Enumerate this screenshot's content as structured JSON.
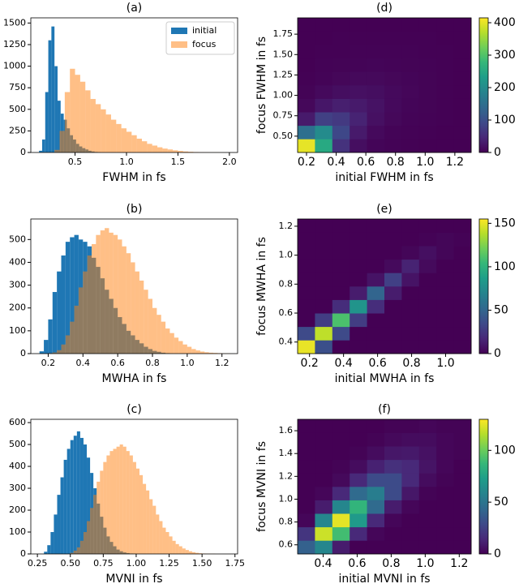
{
  "chart_data": [
    {
      "type": "histogram",
      "title": "(a)",
      "xlabel": "FWHM in fs",
      "xlim": [
        0.07,
        2.08
      ],
      "xticks": [
        0.5,
        {
          "value": 1,
          "label": "1.0"
        },
        1.5,
        {
          "value": 2,
          "label": "2.0"
        }
      ],
      "ylim": [
        0,
        1560
      ],
      "yticks": [
        0,
        250,
        500,
        750,
        1000,
        1250,
        1500
      ],
      "legend": "upper right",
      "series": [
        {
          "name": "initial",
          "color": "#1f77b4",
          "alpha": 1,
          "bins": [
            0.15,
            0.18,
            0.21,
            0.24,
            0.27,
            0.3,
            0.33,
            0.36,
            0.39,
            0.42,
            0.45,
            0.48,
            0.51,
            0.54,
            0.57,
            0.6,
            0.63,
            0.66,
            0.69,
            0.72,
            0.75
          ],
          "values": [
            20,
            150,
            700,
            1300,
            1460,
            1000,
            600,
            450,
            380,
            280,
            200,
            150,
            100,
            70,
            50,
            35,
            20,
            12,
            6,
            3
          ]
        },
        {
          "name": "focus",
          "color": "#ff7f0e",
          "alpha": 0.5,
          "bins": [
            0.3,
            0.35,
            0.4,
            0.45,
            0.5,
            0.55,
            0.6,
            0.65,
            0.7,
            0.75,
            0.8,
            0.85,
            0.9,
            0.95,
            1,
            1.05,
            1.1,
            1.15,
            1.2,
            1.25,
            1.3,
            1.35,
            1.4,
            1.45,
            1.5,
            1.55,
            1.6,
            1.65,
            1.7,
            1.75,
            1.8,
            1.85,
            1.9
          ],
          "values": [
            30,
            250,
            700,
            970,
            900,
            820,
            720,
            620,
            560,
            500,
            440,
            380,
            330,
            280,
            240,
            200,
            160,
            130,
            100,
            80,
            60,
            45,
            35,
            25,
            18,
            12,
            8,
            5,
            3,
            2,
            1,
            1
          ]
        }
      ]
    },
    {
      "type": "histogram",
      "title": "(b)",
      "xlabel": "MWHA in fs",
      "xlim": [
        0.1,
        1.29
      ],
      "xticks": [
        0.2,
        0.4,
        0.6,
        0.8,
        {
          "value": 1,
          "label": "1.0"
        },
        {
          "value": 1.2,
          "label": "1.2"
        }
      ],
      "ylim": [
        0,
        590
      ],
      "yticks": [
        0,
        100,
        200,
        300,
        400,
        500
      ],
      "series": [
        {
          "color": "#1f77b4",
          "alpha": 1,
          "bins": [
            0.15,
            0.175,
            0.2,
            0.225,
            0.25,
            0.275,
            0.3,
            0.325,
            0.35,
            0.375,
            0.4,
            0.425,
            0.45,
            0.475,
            0.5,
            0.525,
            0.55,
            0.575,
            0.6,
            0.625,
            0.65,
            0.675,
            0.7,
            0.725,
            0.75,
            0.775,
            0.8,
            0.825,
            0.85,
            0.875,
            0.9
          ],
          "values": [
            10,
            60,
            150,
            270,
            360,
            430,
            490,
            510,
            520,
            500,
            490,
            470,
            420,
            380,
            330,
            280,
            240,
            200,
            160,
            130,
            100,
            80,
            60,
            45,
            30,
            20,
            12,
            8,
            4,
            2
          ]
        },
        {
          "color": "#ff7f0e",
          "alpha": 0.5,
          "bins": [
            0.2,
            0.225,
            0.25,
            0.275,
            0.3,
            0.325,
            0.35,
            0.375,
            0.4,
            0.425,
            0.45,
            0.475,
            0.5,
            0.525,
            0.55,
            0.575,
            0.6,
            0.625,
            0.65,
            0.675,
            0.7,
            0.725,
            0.75,
            0.775,
            0.8,
            0.825,
            0.85,
            0.875,
            0.9,
            0.925,
            0.95,
            0.975,
            1,
            1.025,
            1.05,
            1.075,
            1.1,
            1.125,
            1.15,
            1.175,
            1.2,
            1.225,
            1.25
          ],
          "values": [
            2,
            5,
            15,
            40,
            80,
            140,
            210,
            290,
            360,
            430,
            480,
            520,
            540,
            550,
            530,
            520,
            500,
            470,
            440,
            400,
            360,
            320,
            280,
            240,
            200,
            170,
            140,
            110,
            90,
            70,
            55,
            40,
            30,
            20,
            14,
            9,
            6,
            4,
            3,
            2,
            1,
            1
          ]
        }
      ]
    },
    {
      "type": "histogram",
      "title": "(c)",
      "xlabel": "MVNI in fs",
      "xlim": [
        0.2,
        1.77
      ],
      "xticks": [
        0.25,
        {
          "value": 0.5,
          "label": "0.50"
        },
        0.75,
        {
          "value": 1,
          "label": "1.00"
        },
        1.25,
        {
          "value": 1.5,
          "label": "1.50"
        },
        1.75
      ],
      "ylim": [
        0,
        615
      ],
      "yticks": [
        0,
        100,
        200,
        300,
        400,
        500,
        600
      ],
      "series": [
        {
          "color": "#1f77b4",
          "alpha": 1,
          "bins": [
            0.3,
            0.325,
            0.35,
            0.375,
            0.4,
            0.425,
            0.45,
            0.475,
            0.5,
            0.525,
            0.55,
            0.575,
            0.6,
            0.625,
            0.65,
            0.675,
            0.7,
            0.725,
            0.75,
            0.775,
            0.8,
            0.825,
            0.85,
            0.875,
            0.9,
            0.925,
            0.95,
            0.975,
            1
          ],
          "values": [
            10,
            40,
            100,
            180,
            270,
            350,
            430,
            480,
            520,
            540,
            560,
            530,
            500,
            440,
            370,
            300,
            230,
            170,
            120,
            80,
            55,
            35,
            20,
            12,
            7,
            4,
            2,
            1
          ]
        },
        {
          "color": "#ff7f0e",
          "alpha": 0.5,
          "bins": [
            0.5,
            0.525,
            0.55,
            0.575,
            0.6,
            0.625,
            0.65,
            0.675,
            0.7,
            0.725,
            0.75,
            0.775,
            0.8,
            0.825,
            0.85,
            0.875,
            0.9,
            0.925,
            0.95,
            0.975,
            1,
            1.025,
            1.05,
            1.075,
            1.1,
            1.125,
            1.15,
            1.175,
            1.2,
            1.225,
            1.25,
            1.275,
            1.3,
            1.325,
            1.35,
            1.375,
            1.4,
            1.425,
            1.45,
            1.475,
            1.5,
            1.525,
            1.55,
            1.575,
            1.6
          ],
          "values": [
            5,
            15,
            30,
            60,
            100,
            150,
            210,
            270,
            330,
            380,
            420,
            450,
            470,
            480,
            490,
            500,
            490,
            470,
            450,
            420,
            390,
            360,
            320,
            290,
            250,
            220,
            180,
            150,
            120,
            100,
            80,
            60,
            45,
            35,
            25,
            18,
            12,
            8,
            5,
            3,
            2,
            1,
            1,
            1
          ]
        }
      ]
    },
    {
      "type": "heatmap",
      "title": "(d)",
      "xlabel": "initial FWHM in fs",
      "ylabel": "focus FWHM in fs",
      "colormap": "viridis",
      "xlim": [
        0.14,
        1.31
      ],
      "xticks": [
        0.2,
        0.4,
        0.6,
        0.8,
        {
          "value": 1,
          "label": "1.0"
        },
        {
          "value": 1.2,
          "label": "1.2"
        }
      ],
      "ylim": [
        0.3,
        1.95
      ],
      "yticks": [
        {
          "value": 0.5,
          "label": "0.50"
        },
        0.75,
        {
          "value": 1,
          "label": "1.00"
        },
        1.25,
        {
          "value": 1.5,
          "label": "1.50"
        },
        1.75
      ],
      "clim": [
        0,
        415
      ],
      "cticks": [
        0,
        100,
        200,
        300,
        400
      ],
      "x_edges": [
        0.14,
        0.257,
        0.374,
        0.491,
        0.608,
        0.725,
        0.842,
        0.959,
        1.076,
        1.193,
        1.31
      ],
      "y_edges": [
        0.3,
        0.465,
        0.63,
        0.795,
        0.96,
        1.125,
        1.29,
        1.455,
        1.62,
        1.785,
        1.95
      ],
      "z": [
        [
          400,
          250,
          60,
          15,
          5,
          2,
          1,
          0,
          0,
          0
        ],
        [
          150,
          200,
          90,
          30,
          10,
          4,
          2,
          1,
          0,
          0
        ],
        [
          30,
          80,
          70,
          40,
          18,
          8,
          4,
          2,
          1,
          0
        ],
        [
          8,
          25,
          35,
          30,
          20,
          10,
          5,
          3,
          1,
          0
        ],
        [
          3,
          10,
          15,
          18,
          15,
          10,
          6,
          3,
          1,
          0
        ],
        [
          1,
          4,
          7,
          9,
          9,
          7,
          5,
          3,
          1,
          0
        ],
        [
          0,
          2,
          3,
          4,
          5,
          4,
          3,
          2,
          1,
          0
        ],
        [
          0,
          1,
          1,
          2,
          2,
          2,
          2,
          1,
          1,
          0
        ],
        [
          0,
          0,
          1,
          1,
          1,
          1,
          1,
          1,
          0,
          0
        ],
        [
          0,
          0,
          0,
          0,
          0,
          0,
          0,
          0,
          0,
          0
        ]
      ]
    },
    {
      "type": "heatmap",
      "title": "(e)",
      "xlabel": "initial MWHA in fs",
      "ylabel": "focus MWHA in fs",
      "colormap": "viridis",
      "xlim": [
        0.13,
        1.15
      ],
      "xticks": [
        0.2,
        0.4,
        0.6,
        0.8,
        {
          "value": 1,
          "label": "1.0"
        }
      ],
      "ylim": [
        0.32,
        1.25
      ],
      "yticks": [
        0.4,
        0.6,
        0.8,
        {
          "value": 1,
          "label": "1.0"
        },
        {
          "value": 1.2,
          "label": "1.2"
        }
      ],
      "clim": [
        0,
        155
      ],
      "cticks": [
        0,
        50,
        100,
        150
      ],
      "x_edges": [
        0.13,
        0.232,
        0.334,
        0.436,
        0.538,
        0.64,
        0.742,
        0.844,
        0.946,
        1.048,
        1.15
      ],
      "y_edges": [
        0.32,
        0.413,
        0.506,
        0.599,
        0.692,
        0.785,
        0.878,
        0.971,
        1.064,
        1.157,
        1.25
      ],
      "z": [
        [
          150,
          38,
          0,
          0,
          0,
          0,
          0,
          0,
          0,
          0
        ],
        [
          35,
          140,
          35,
          0,
          0,
          0,
          0,
          0,
          0,
          0
        ],
        [
          0,
          28,
          110,
          28,
          0,
          0,
          0,
          0,
          0,
          0
        ],
        [
          0,
          0,
          20,
          80,
          20,
          0,
          0,
          0,
          0,
          0
        ],
        [
          0,
          0,
          0,
          12,
          50,
          12,
          0,
          0,
          0,
          0
        ],
        [
          0,
          0,
          0,
          0,
          8,
          30,
          8,
          0,
          0,
          0
        ],
        [
          0,
          0,
          0,
          0,
          0,
          4,
          15,
          4,
          0,
          0
        ],
        [
          0,
          0,
          0,
          0,
          0,
          0,
          2,
          6,
          2,
          0
        ],
        [
          0,
          0,
          0,
          0,
          0,
          0,
          0,
          1,
          2,
          1
        ],
        [
          0,
          0,
          0,
          0,
          0,
          0,
          0,
          0,
          0,
          0
        ]
      ]
    },
    {
      "type": "heatmap",
      "title": "(f)",
      "xlabel": "initial MVNI in fs",
      "ylabel": "focus MVNI in fs",
      "colormap": "viridis",
      "xlim": [
        0.25,
        1.27
      ],
      "xticks": [
        0.4,
        0.6,
        0.8,
        {
          "value": 1,
          "label": "1.0"
        },
        {
          "value": 1.2,
          "label": "1.2"
        }
      ],
      "ylim": [
        0.52,
        1.7
      ],
      "yticks": [
        0.6,
        0.8,
        {
          "value": 1,
          "label": "1.0"
        },
        {
          "value": 1.2,
          "label": "1.2"
        },
        {
          "value": 1.4,
          "label": "1.4"
        },
        {
          "value": 1.6,
          "label": "1.6"
        }
      ],
      "clim": [
        0,
        130
      ],
      "cticks": [
        0,
        50,
        100
      ],
      "x_edges": [
        0.25,
        0.352,
        0.454,
        0.556,
        0.658,
        0.76,
        0.862,
        0.964,
        1.066,
        1.168,
        1.27
      ],
      "y_edges": [
        0.52,
        0.638,
        0.756,
        0.874,
        0.992,
        1.11,
        1.228,
        1.346,
        1.464,
        1.582,
        1.7
      ],
      "z": [
        [
          40,
          60,
          10,
          0,
          0,
          0,
          0,
          0,
          0,
          0
        ],
        [
          20,
          120,
          90,
          15,
          2,
          0,
          0,
          0,
          0,
          0
        ],
        [
          2,
          60,
          125,
          70,
          15,
          2,
          0,
          0,
          0,
          0
        ],
        [
          0,
          10,
          60,
          85,
          45,
          10,
          2,
          0,
          0,
          0
        ],
        [
          0,
          2,
          15,
          45,
          55,
          30,
          8,
          1,
          0,
          0
        ],
        [
          0,
          0,
          3,
          15,
          30,
          30,
          15,
          4,
          1,
          0
        ],
        [
          0,
          0,
          1,
          4,
          12,
          18,
          15,
          7,
          2,
          0
        ],
        [
          0,
          0,
          0,
          1,
          4,
          8,
          9,
          6,
          2,
          1
        ],
        [
          0,
          0,
          0,
          0,
          1,
          3,
          4,
          4,
          2,
          1
        ],
        [
          0,
          0,
          0,
          0,
          0,
          1,
          1,
          2,
          1,
          1
        ]
      ]
    }
  ]
}
